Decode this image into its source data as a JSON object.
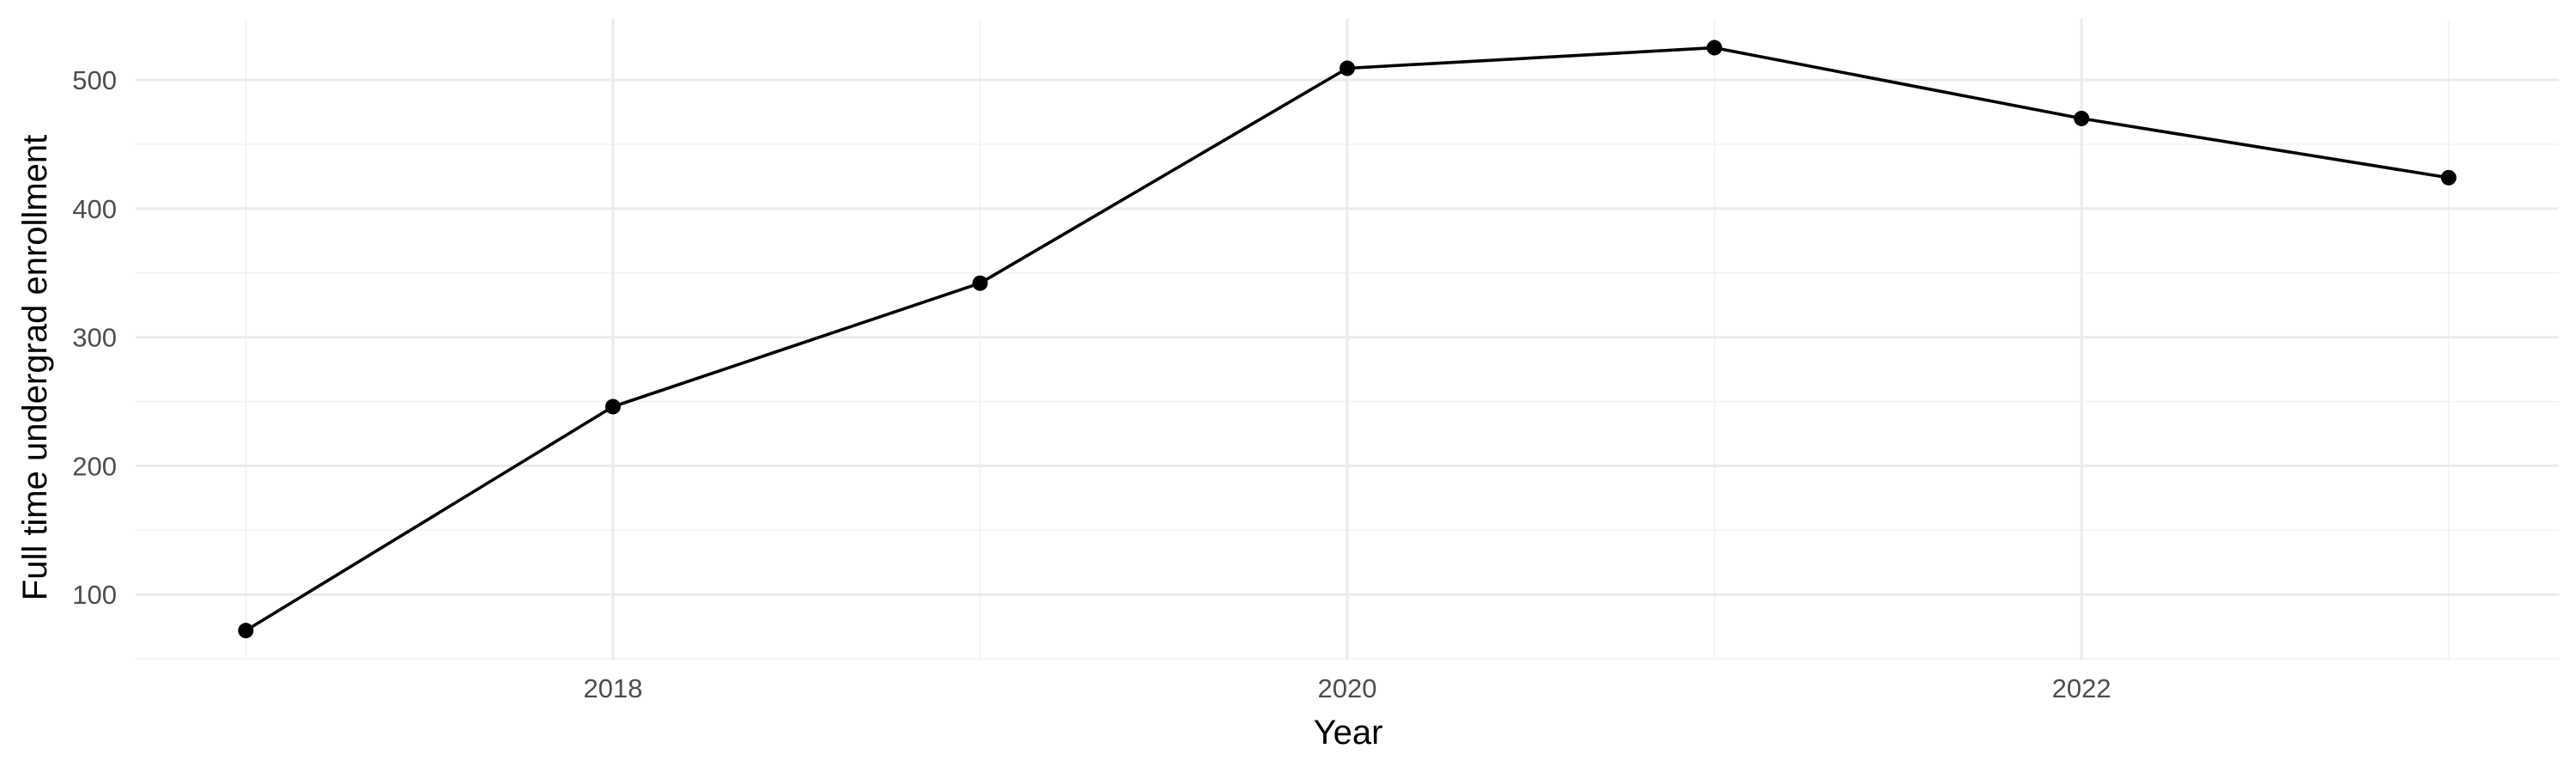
{
  "chart_data": {
    "type": "line",
    "title": "",
    "xlabel": "Year",
    "ylabel": "Full time undergrad enrollment",
    "x": [
      2017,
      2018,
      2019,
      2020,
      2021,
      2022,
      2023
    ],
    "series": [
      {
        "values": [
          72,
          246,
          342,
          509,
          525,
          470,
          424
        ]
      }
    ],
    "xlim": [
      2016.7,
      2023.3
    ],
    "ylim": [
      49.4,
      547.4
    ],
    "x_ticks": [
      2018,
      2020,
      2022
    ],
    "x_tick_labels": [
      "2018",
      "2020",
      "2022"
    ],
    "y_ticks": [
      100,
      200,
      300,
      400,
      500
    ],
    "y_tick_labels": [
      "100",
      "200",
      "300",
      "400",
      "500"
    ],
    "grid": true,
    "legend": "none",
    "colors": {
      "line": "#000000",
      "grid": "#ebebeb",
      "tick_text": "#4d4d4d"
    }
  }
}
